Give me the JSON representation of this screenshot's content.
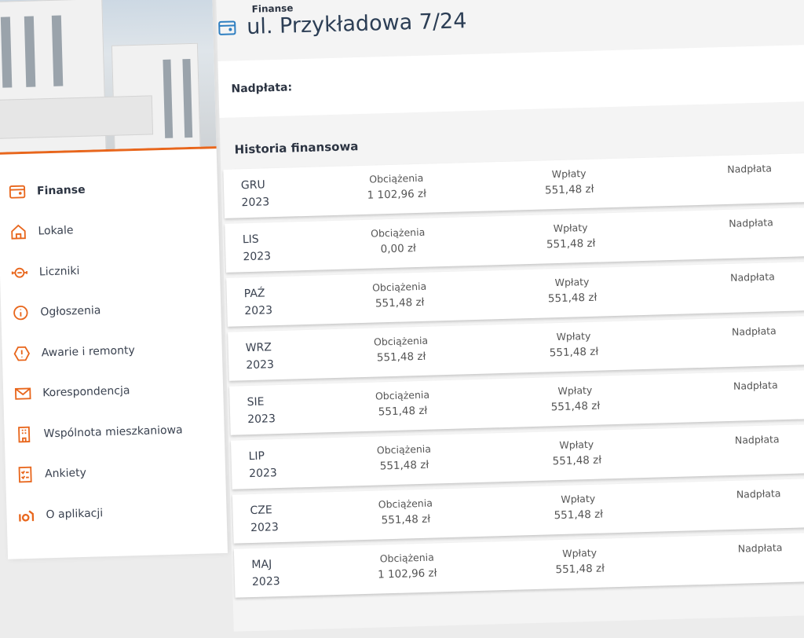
{
  "accent": "#e8661c",
  "header": {
    "breadcrumb": "Finanse",
    "title": "ul. Przykładowa 7/24"
  },
  "sidebar": {
    "items": [
      {
        "label": "Finanse",
        "icon": "wallet-icon",
        "active": true
      },
      {
        "label": "Lokale",
        "icon": "home-icon"
      },
      {
        "label": "Liczniki",
        "icon": "meter-icon"
      },
      {
        "label": "Ogłoszenia",
        "icon": "info-icon"
      },
      {
        "label": "Awarie i remonty",
        "icon": "warning-icon"
      },
      {
        "label": "Korespondencja",
        "icon": "mail-icon"
      },
      {
        "label": "Wspólnota mieszkaniowa",
        "icon": "building-icon"
      },
      {
        "label": "Ankiety",
        "icon": "checklist-icon"
      },
      {
        "label": "O aplikacji",
        "icon": "app-logo-icon"
      }
    ]
  },
  "overpayment": {
    "label": "Nadpłata:"
  },
  "history": {
    "title": "Historia finansowa",
    "charges_label": "Obciążenia",
    "payments_label": "Wpłaty",
    "overpayment_label": "Nadpłata",
    "rows": [
      {
        "month": "GRU",
        "year": "2023",
        "charges": "1 102,96 zł",
        "payments": "551,48 zł"
      },
      {
        "month": "LIS",
        "year": "2023",
        "charges": "0,00 zł",
        "payments": "551,48 zł"
      },
      {
        "month": "PAŹ",
        "year": "2023",
        "charges": "551,48 zł",
        "payments": "551,48 zł"
      },
      {
        "month": "WRZ",
        "year": "2023",
        "charges": "551,48 zł",
        "payments": "551,48 zł"
      },
      {
        "month": "SIE",
        "year": "2023",
        "charges": "551,48 zł",
        "payments": "551,48 zł"
      },
      {
        "month": "LIP",
        "year": "2023",
        "charges": "551,48 zł",
        "payments": "551,48 zł"
      },
      {
        "month": "CZE",
        "year": "2023",
        "charges": "551,48 zł",
        "payments": "551,48 zł"
      },
      {
        "month": "MAJ",
        "year": "2023",
        "charges": "1 102,96 zł",
        "payments": "551,48 zł"
      }
    ]
  }
}
